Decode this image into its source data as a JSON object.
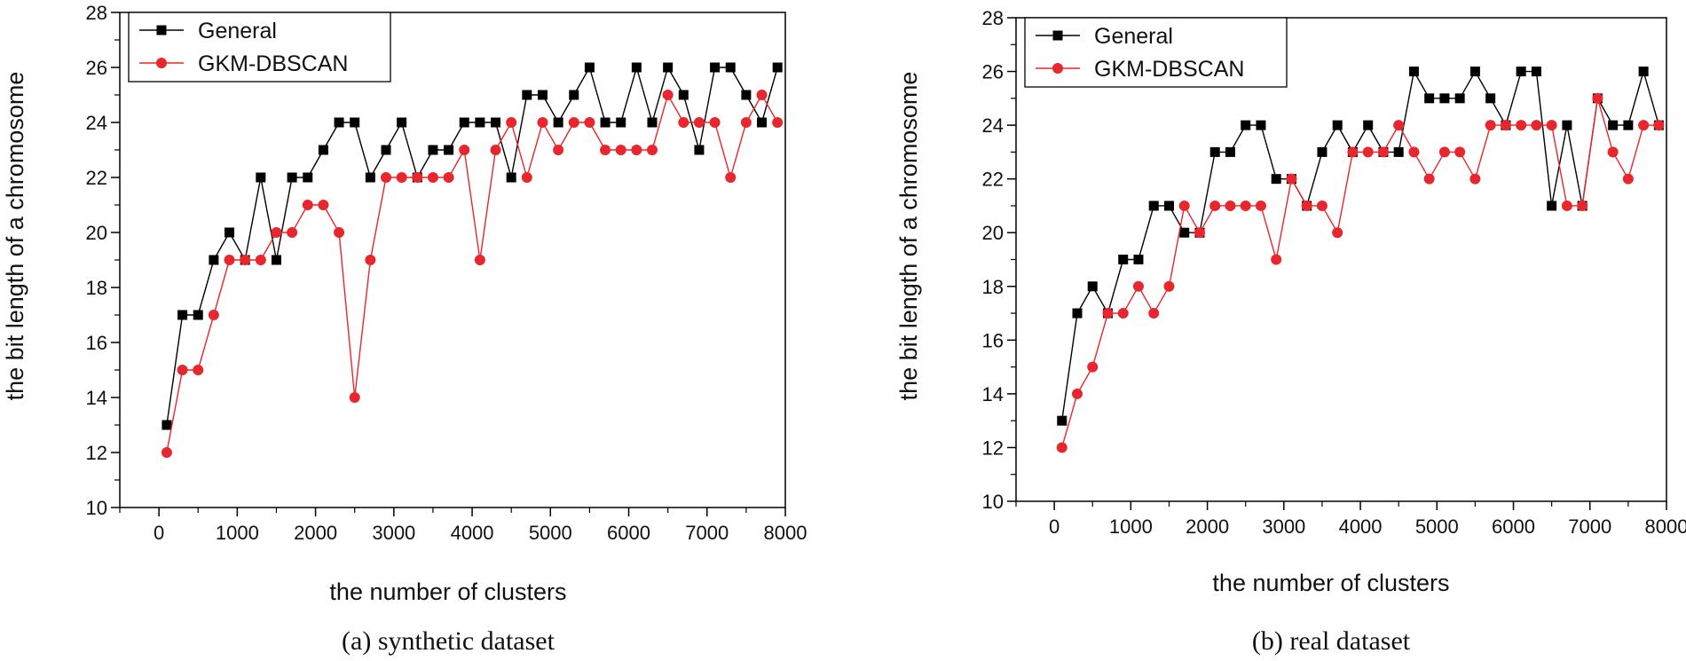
{
  "chart_data": [
    {
      "type": "line",
      "caption": "(a) synthetic dataset",
      "xlabel": "the number of clusters",
      "ylabel": "the bit length of a chromosome",
      "xlim": [
        -500,
        8000
      ],
      "ylim": [
        10,
        28
      ],
      "xticks": [
        "0",
        "1000",
        "2000",
        "3000",
        "4000",
        "5000",
        "6000",
        "7000",
        "8000"
      ],
      "yticks": [
        "10",
        "12",
        "14",
        "16",
        "18",
        "20",
        "22",
        "24",
        "26",
        "28"
      ],
      "legend_position": "top-left",
      "x": [
        100,
        300,
        500,
        700,
        900,
        1100,
        1300,
        1500,
        1700,
        1900,
        2100,
        2300,
        2500,
        2700,
        2900,
        3100,
        3300,
        3500,
        3700,
        3900,
        4100,
        4300,
        4500,
        4700,
        4900,
        5100,
        5300,
        5500,
        5700,
        5900,
        6100,
        6300,
        6500,
        6700,
        6900,
        7100,
        7300,
        7500,
        7700,
        7900
      ],
      "series": [
        {
          "name": "General",
          "color": "#000000",
          "marker": "square",
          "values": [
            13,
            17,
            17,
            19,
            20,
            19,
            22,
            19,
            22,
            22,
            23,
            24,
            24,
            22,
            23,
            24,
            22,
            23,
            23,
            24,
            24,
            24,
            22,
            25,
            25,
            24,
            25,
            26,
            24,
            24,
            26,
            24,
            26,
            25,
            23,
            26,
            26,
            25,
            24,
            26
          ]
        },
        {
          "name": "GKM-DBSCAN",
          "color": "#e8262d",
          "marker": "circle",
          "values": [
            12,
            15,
            15,
            17,
            19,
            19,
            19,
            20,
            20,
            21,
            21,
            20,
            14,
            19,
            22,
            22,
            22,
            22,
            22,
            23,
            19,
            23,
            24,
            22,
            24,
            23,
            24,
            24,
            23,
            23,
            23,
            23,
            25,
            24,
            24,
            24,
            22,
            24,
            25,
            24
          ]
        }
      ]
    },
    {
      "type": "line",
      "caption": "(b) real dataset",
      "xlabel": "the number of clusters",
      "ylabel": "the bit length of a chromosome",
      "xlim": [
        -500,
        8000
      ],
      "ylim": [
        10,
        28
      ],
      "xticks": [
        "0",
        "1000",
        "2000",
        "3000",
        "4000",
        "5000",
        "6000",
        "7000",
        "8000"
      ],
      "yticks": [
        "10",
        "12",
        "14",
        "16",
        "18",
        "20",
        "22",
        "24",
        "26",
        "28"
      ],
      "legend_position": "top-left",
      "x": [
        100,
        300,
        500,
        700,
        900,
        1100,
        1300,
        1500,
        1700,
        1900,
        2100,
        2300,
        2500,
        2700,
        2900,
        3100,
        3300,
        3500,
        3700,
        3900,
        4100,
        4300,
        4500,
        4700,
        4900,
        5100,
        5300,
        5500,
        5700,
        5900,
        6100,
        6300,
        6500,
        6700,
        6900,
        7100,
        7300,
        7500,
        7700,
        7900
      ],
      "series": [
        {
          "name": "General",
          "color": "#000000",
          "marker": "square",
          "values": [
            13,
            17,
            18,
            17,
            19,
            19,
            21,
            21,
            20,
            20,
            23,
            23,
            24,
            24,
            22,
            22,
            21,
            23,
            24,
            23,
            24,
            23,
            23,
            26,
            25,
            25,
            25,
            26,
            25,
            24,
            26,
            26,
            21,
            24,
            21,
            25,
            24,
            24,
            26,
            24
          ]
        },
        {
          "name": "GKM-DBSCAN",
          "color": "#e8262d",
          "marker": "circle",
          "values": [
            12,
            14,
            15,
            17,
            17,
            18,
            17,
            18,
            21,
            20,
            21,
            21,
            21,
            21,
            19,
            22,
            21,
            21,
            20,
            23,
            23,
            23,
            24,
            23,
            22,
            23,
            23,
            22,
            24,
            24,
            24,
            24,
            24,
            21,
            21,
            25,
            23,
            22,
            24,
            24
          ]
        }
      ]
    }
  ]
}
